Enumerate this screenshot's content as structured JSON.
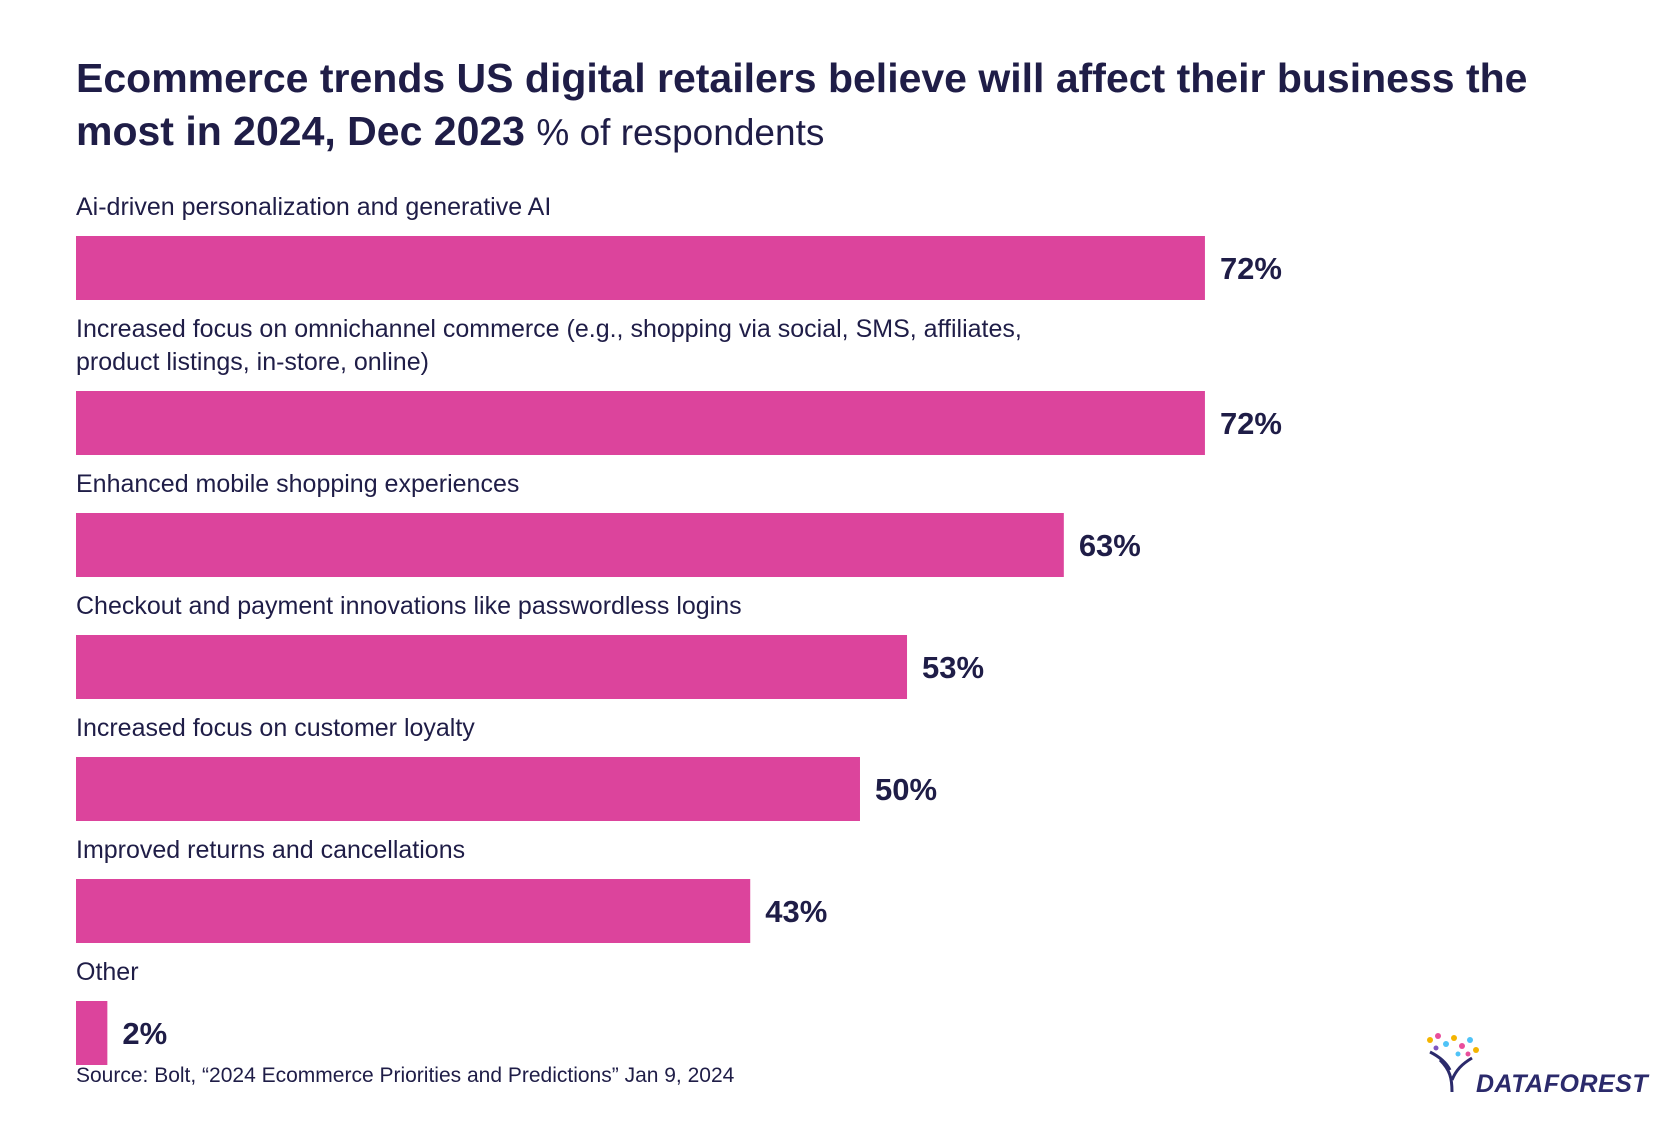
{
  "title": "Ecommerce trends US digital retailers believe will affect their business the most in 2024, Dec 2023",
  "subtitle": "% of respondents",
  "source": "Source: Bolt, “2024 Ecommerce Priorities and Predictions” Jan 9, 2024",
  "brand": "DATAFOREST",
  "colors": {
    "bar": "#dc449c",
    "text": "#1f1d47",
    "brand": "#2b2a6b"
  },
  "chart_data": {
    "type": "bar",
    "orientation": "horizontal",
    "categories": [
      "Ai-driven personalization and generative AI",
      [
        "Increased focus on omnichannel commerce (e.g., shopping via social, SMS, affiliates,",
        "product listings, in-store, online)"
      ],
      "Enhanced mobile shopping experiences",
      "Checkout and payment innovations like passwordless logins",
      "Increased focus on customer loyalty",
      "Improved returns and cancellations",
      "Other"
    ],
    "values": [
      72,
      72,
      63,
      53,
      50,
      43,
      2
    ],
    "value_labels": [
      "72%",
      "72%",
      "63%",
      "53%",
      "50%",
      "43%",
      "2%"
    ],
    "unit": "%",
    "grid": false
  }
}
